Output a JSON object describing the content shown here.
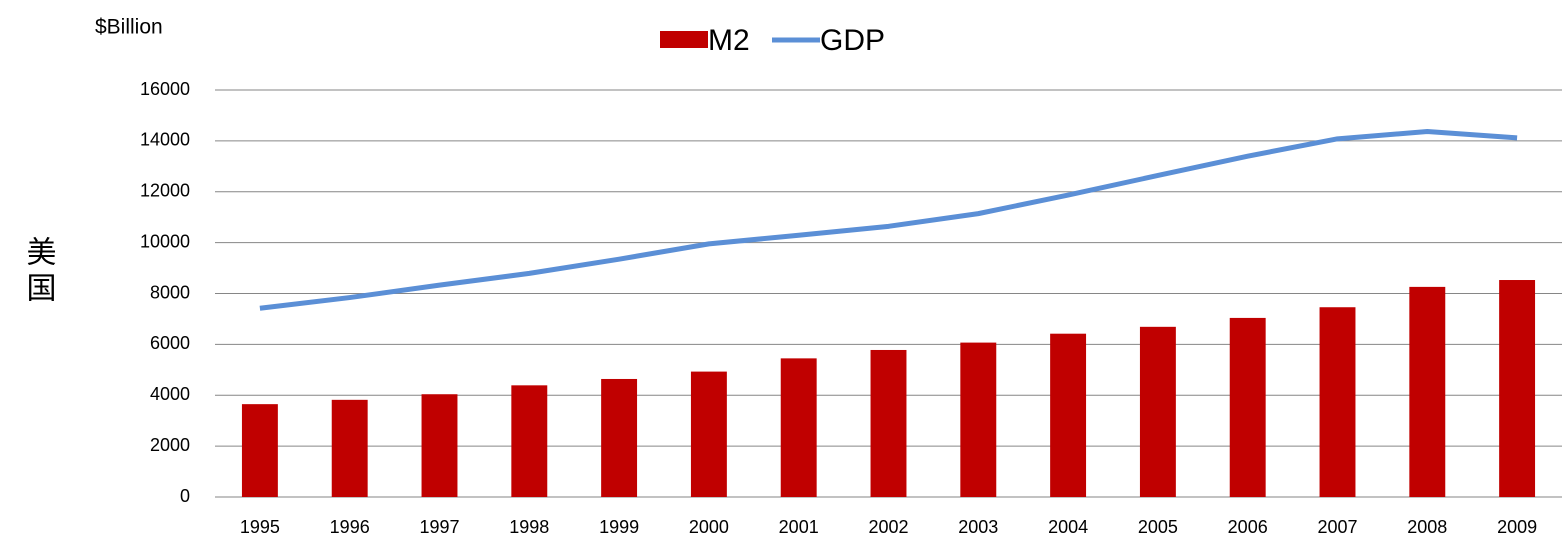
{
  "chart_data": {
    "type": "bar_line",
    "unit_label": "$Billion",
    "ylabel": "美国",
    "categories": [
      "1995",
      "1996",
      "1997",
      "1998",
      "1999",
      "2000",
      "2001",
      "2002",
      "2003",
      "2004",
      "2005",
      "2006",
      "2007",
      "2008",
      "2009"
    ],
    "series": [
      {
        "name": "M2",
        "type": "bar",
        "color": "#c00000",
        "values": [
          3650,
          3820,
          4040,
          4390,
          4640,
          4930,
          5450,
          5780,
          6070,
          6420,
          6690,
          7040,
          7460,
          8260,
          8530
        ]
      },
      {
        "name": "GDP",
        "type": "line",
        "color": "#5b8fd6",
        "values": [
          7420,
          7840,
          8330,
          8790,
          9350,
          9950,
          10290,
          10640,
          11140,
          11870,
          12640,
          13400,
          14080,
          14370,
          14120
        ]
      }
    ],
    "ylim": [
      0,
      16000
    ],
    "yticks": [
      0,
      2000,
      4000,
      6000,
      8000,
      10000,
      12000,
      14000,
      16000
    ],
    "grid": true,
    "legend": "top"
  }
}
